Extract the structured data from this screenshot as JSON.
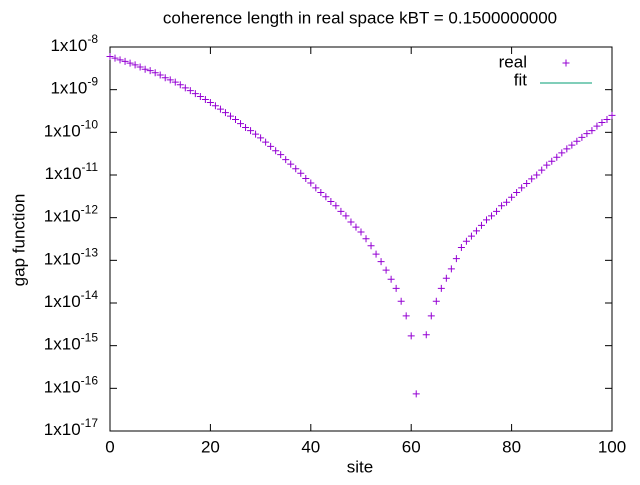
{
  "chart_data": {
    "type": "scatter",
    "title": "coherence length in real space kBT = 0.1500000000",
    "xlabel": "site",
    "ylabel": "gap function",
    "log_y": true,
    "grid": false,
    "legend": "top-right",
    "xlim": [
      0,
      100
    ],
    "xticks": [
      0,
      20,
      40,
      60,
      80,
      100
    ],
    "ylim": [
      1e-17,
      1e-08
    ],
    "yticks": [
      {
        "value": 1e-08,
        "label": "1x10",
        "exponent": "-8"
      },
      {
        "value": 1e-09,
        "label": "1x10",
        "exponent": "-9"
      },
      {
        "value": 1e-10,
        "label": "1x10",
        "exponent": "-10"
      },
      {
        "value": 1e-11,
        "label": "1x10",
        "exponent": "-11"
      },
      {
        "value": 1e-12,
        "label": "1x10",
        "exponent": "-12"
      },
      {
        "value": 1e-13,
        "label": "1x10",
        "exponent": "-13"
      },
      {
        "value": 1e-14,
        "label": "1x10",
        "exponent": "-14"
      },
      {
        "value": 1e-15,
        "label": "1x10",
        "exponent": "-15"
      },
      {
        "value": 1e-16,
        "label": "1x10",
        "exponent": "-16"
      },
      {
        "value": 1e-17,
        "label": "1x10",
        "exponent": "-17"
      }
    ],
    "x": [
      0,
      1,
      2,
      3,
      4,
      5,
      6,
      7,
      8,
      9,
      10,
      11,
      12,
      13,
      14,
      15,
      16,
      17,
      18,
      19,
      20,
      21,
      22,
      23,
      24,
      25,
      26,
      27,
      28,
      29,
      30,
      31,
      32,
      33,
      34,
      35,
      36,
      37,
      38,
      39,
      40,
      41,
      42,
      43,
      44,
      45,
      46,
      47,
      48,
      49,
      50,
      51,
      52,
      53,
      54,
      55,
      56,
      57,
      58,
      59,
      60,
      61,
      62,
      63,
      64,
      65,
      66,
      67,
      68,
      69,
      70,
      71,
      72,
      73,
      74,
      75,
      76,
      77,
      78,
      79,
      80,
      81,
      82,
      83,
      84,
      85,
      86,
      87,
      88,
      89,
      90,
      91,
      92,
      93,
      94,
      95,
      96,
      97,
      98,
      99,
      100
    ],
    "series": [
      {
        "name": "real",
        "color": "#9400d3",
        "marker": "plus",
        "values": [
          6e-09,
          5.5e-09,
          5e-09,
          4.6e-09,
          4.2e-09,
          3.8e-09,
          3.4e-09,
          3e-09,
          2.8e-09,
          2.5e-09,
          2.2e-09,
          1.9e-09,
          1.7e-09,
          1.5e-09,
          1.3e-09,
          1.1e-09,
          9.5e-10,
          8.1e-10,
          6.9e-10,
          5.9e-10,
          5e-10,
          4.2e-10,
          3.5e-10,
          2.9e-10,
          2.4e-10,
          2e-10,
          1.6e-10,
          1.3e-10,
          1.1e-10,
          9.1e-11,
          7.4e-11,
          5.9e-11,
          4.7e-11,
          3.7e-11,
          3e-11,
          2.3e-11,
          1.8e-11,
          1.4e-11,
          1.1e-11,
          8.3e-12,
          6.5e-12,
          5e-12,
          3.9e-12,
          3.1e-12,
          2.4e-12,
          1.9e-12,
          1.4e-12,
          1.1e-12,
          7.9e-13,
          6e-13,
          4.6e-13,
          3.2e-13,
          2.2e-13,
          1.4e-13,
          9.3e-14,
          5.9e-14,
          3.6e-14,
          2.2e-14,
          1.1e-14,
          5e-15,
          1.7e-15,
          7.4e-17,
          null,
          1.8e-15,
          5e-15,
          1.1e-14,
          2.2e-14,
          3.8e-14,
          6.3e-14,
          1.1e-13,
          2e-13,
          2.8e-13,
          3.7e-13,
          4.9e-13,
          6.6e-13,
          8.9e-13,
          1.1e-12,
          1.4e-12,
          1.9e-12,
          2.3e-12,
          3e-12,
          3.9e-12,
          5e-12,
          6.3e-12,
          8.1e-12,
          1e-11,
          1.3e-11,
          1.7e-11,
          2.1e-11,
          2.6e-11,
          3.3e-11,
          4.1e-11,
          5e-11,
          6.2e-11,
          7.6e-11,
          9.3e-11,
          1.1e-10,
          1.4e-10,
          1.7e-10,
          2e-10,
          2.5e-10
        ]
      },
      {
        "name": "fit",
        "color": "#009e73",
        "marker": "line"
      }
    ]
  }
}
